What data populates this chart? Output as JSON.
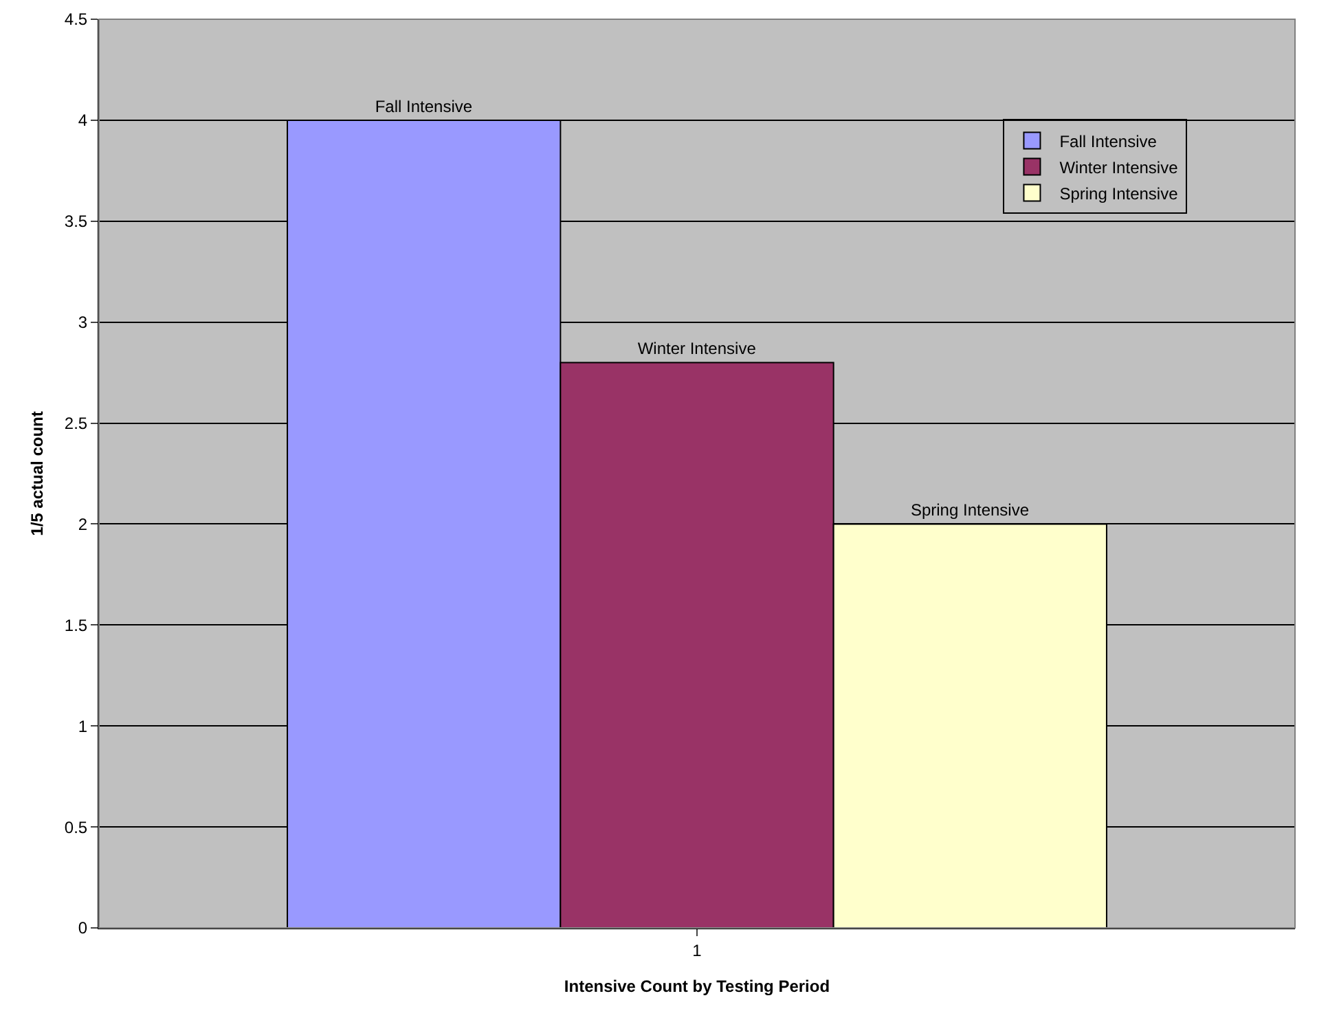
{
  "chart_data": {
    "type": "bar",
    "xlabel": "Intensive Count by Testing Period",
    "ylabel": "1/5 actual count",
    "categories": [
      "1"
    ],
    "series": [
      {
        "name": "Fall Intensive",
        "color": "#9999ff",
        "values": [
          4
        ]
      },
      {
        "name": "Winter Intensive",
        "color": "#993366",
        "values": [
          2.8
        ]
      },
      {
        "name": "Spring Intensive",
        "color": "#ffffcc",
        "values": [
          2
        ]
      }
    ],
    "ylim": [
      0,
      4.5
    ],
    "yticks": [
      0,
      0.5,
      1,
      1.5,
      2,
      2.5,
      3,
      3.5,
      4,
      4.5
    ],
    "grid": "y",
    "legend": "top right"
  }
}
